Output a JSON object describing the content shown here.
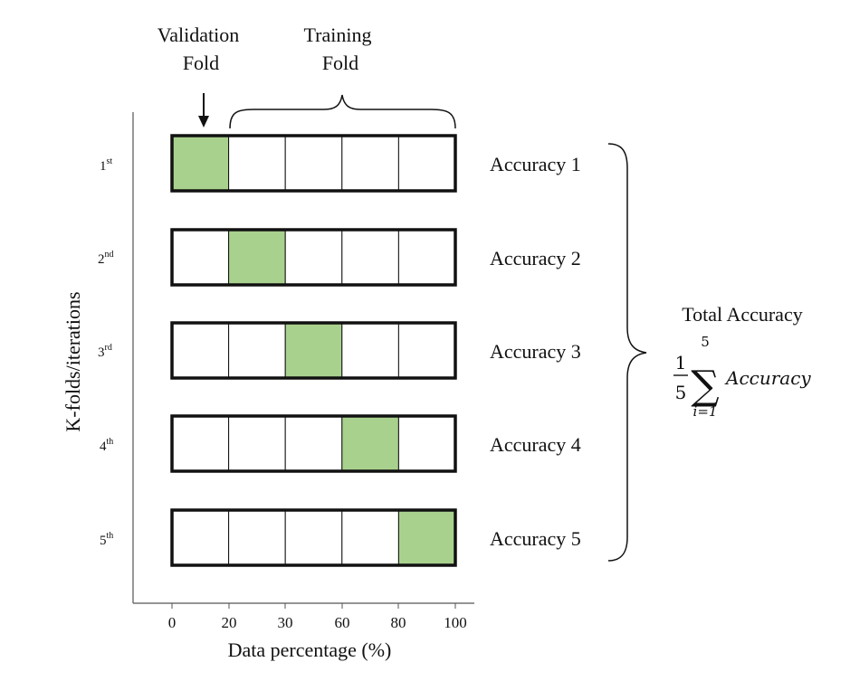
{
  "header": {
    "validation_line1": "Validation",
    "validation_line2": "Fold",
    "training_line1": "Training",
    "training_line2": "Fold"
  },
  "y_axis_label": "K-folds/iterations",
  "x_axis_label": "Data percentage (%)",
  "x_ticks": [
    "0",
    "20",
    "30",
    "60",
    "80",
    "100"
  ],
  "folds": [
    {
      "ordinal": "1",
      "suffix": "st",
      "accuracy": "Accuracy 1",
      "validation_segment": 1
    },
    {
      "ordinal": "2",
      "suffix": "nd",
      "accuracy": "Accuracy 2",
      "validation_segment": 2
    },
    {
      "ordinal": "3",
      "suffix": "rd",
      "accuracy": "Accuracy 3",
      "validation_segment": 3
    },
    {
      "ordinal": "4",
      "suffix": "th",
      "accuracy": "Accuracy 4",
      "validation_segment": 4
    },
    {
      "ordinal": "5",
      "suffix": "th",
      "accuracy": "Accuracy 5",
      "validation_segment": 5
    }
  ],
  "segments_per_fold": 5,
  "total": {
    "title": "Total Accuracy",
    "numerator": "1",
    "denominator": "5",
    "sum_upper": "5",
    "sum_lower": "i=1",
    "sum_symbol": "∑",
    "term": "Accuracy"
  },
  "colors": {
    "validation_fill": "#a9d18e",
    "training_fill": "#ffffff",
    "outline": "#111111"
  }
}
